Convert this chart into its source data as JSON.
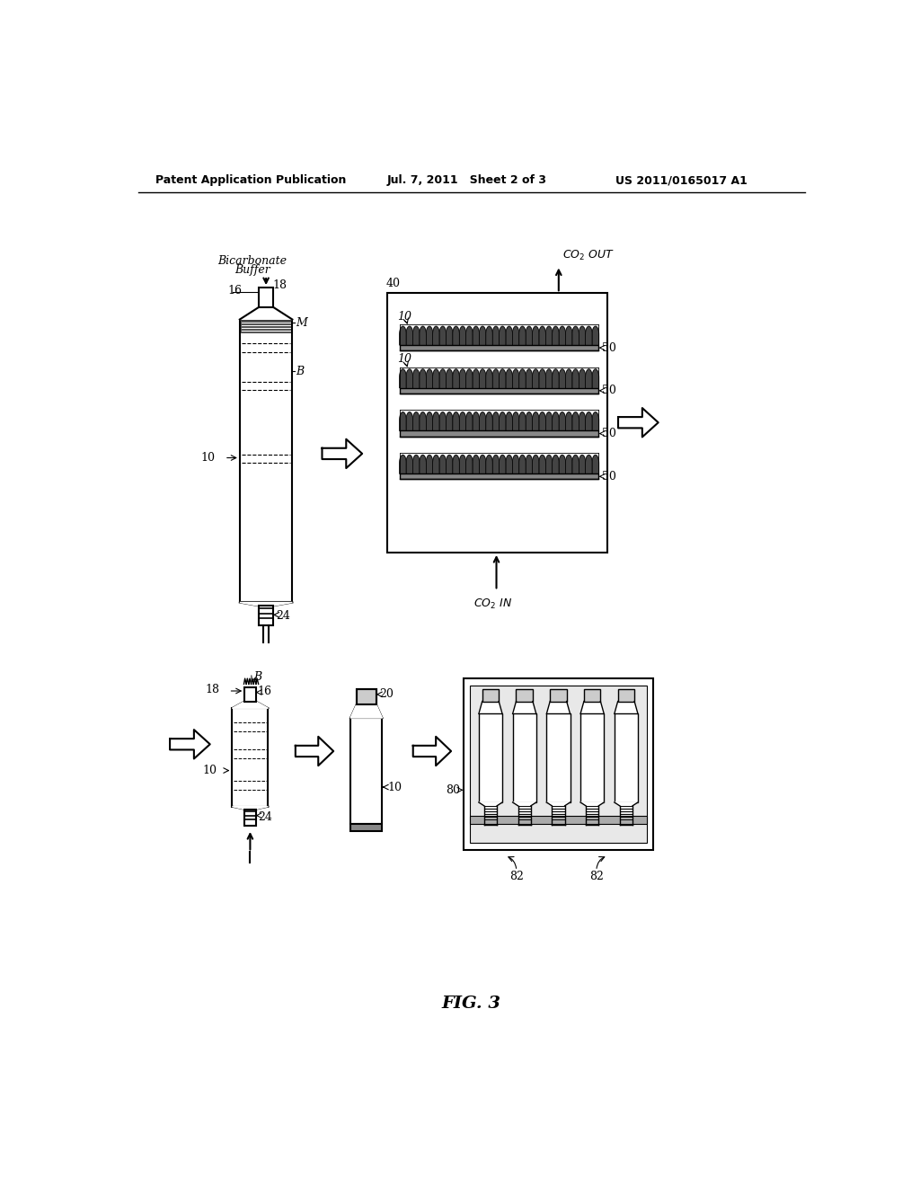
{
  "header_left": "Patent Application Publication",
  "header_mid": "Jul. 7, 2011   Sheet 2 of 3",
  "header_right": "US 2011/0165017 A1",
  "fig_label": "FIG. 3",
  "bg_color": "#ffffff",
  "line_color": "#000000"
}
